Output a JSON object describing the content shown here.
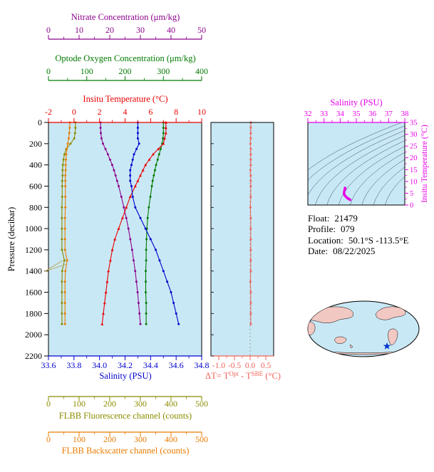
{
  "colors": {
    "plot_bg": "#c9e8f5",
    "nitrate": "#8b008b",
    "oxygen": "#007a00",
    "temperature": "#e80000",
    "pressure": "#000000",
    "salinity": "#0000cd",
    "fluorescence": "#8b8b00",
    "backscatter": "#e87c00",
    "delta_t": "#f0645a",
    "ts": "#e800e8",
    "contour": "#3a4a6b",
    "map_land": "#f2c8c3",
    "map_ocean": "#c9e8f5",
    "marker_star": "#0033cc"
  },
  "axes": {
    "nitrate": {
      "title": "Nitrate Concentration (μm/kg)",
      "min": 0,
      "max": 50,
      "ticks": [
        "0",
        "10",
        "20",
        "30",
        "40",
        "50"
      ]
    },
    "oxygen": {
      "title": "Optode Oxygen Concentration (μm/kg)",
      "min": 0,
      "max": 400,
      "ticks": [
        "0",
        "100",
        "200",
        "300",
        "400"
      ]
    },
    "temperature": {
      "title": "Insitu Temperature (°C)",
      "min": -2,
      "max": 10,
      "ticks": [
        "-2",
        "0",
        "2",
        "4",
        "6",
        "8",
        "10"
      ]
    },
    "pressure": {
      "title": "Pressure (decibar)",
      "min": 0,
      "max": 2200,
      "ticks": [
        "0",
        "200",
        "400",
        "600",
        "800",
        "1000",
        "1200",
        "1400",
        "1600",
        "1800",
        "2000",
        "2200"
      ]
    },
    "salinity": {
      "title": "Salinity (PSU)",
      "min": 33.6,
      "max": 34.8,
      "ticks": [
        "33.6",
        "33.8",
        "34.0",
        "34.2",
        "34.4",
        "34.6",
        "34.8"
      ]
    },
    "fluorescence": {
      "title": "FLBB Fluorescence channel (counts)",
      "min": 0,
      "max": 500,
      "ticks": [
        "0",
        "100",
        "200",
        "300",
        "400",
        "500"
      ]
    },
    "backscatter": {
      "title": "FLBB Backscatter channel (counts)",
      "min": 0,
      "max": 500,
      "ticks": [
        "0",
        "100",
        "200",
        "300",
        "400",
        "500"
      ]
    },
    "delta_t": {
      "title_parts": {
        "base1": "ΔT= T",
        "sup1": "Opt",
        "base2": " - T",
        "sup2": "SBE",
        "base3": " (°C)"
      },
      "min": -1.25,
      "max": 0.75,
      "ticks": [
        "-1.0",
        "-0.5",
        "0.0",
        "0.5"
      ]
    },
    "ts_salinity": {
      "title": "Salinity (PSU)",
      "min": 32,
      "max": 38,
      "ticks": [
        "32",
        "33",
        "34",
        "35",
        "36",
        "37",
        "38"
      ]
    },
    "ts_temperature": {
      "title": "Insitu Temperature (°C)",
      "min": 0,
      "max": 35,
      "ticks": [
        "0",
        "5",
        "10",
        "15",
        "20",
        "25",
        "30",
        "35"
      ]
    }
  },
  "float_info": {
    "float_label": "Float:",
    "float_value": "21479",
    "profile_label": "Profile:",
    "profile_value": "079",
    "location_label": "Location:",
    "location_value": "50.1°S -113.5°E",
    "date_label": "Date:",
    "date_value": "08/22/2025"
  },
  "chart_data": [
    {
      "id": "profile-plot",
      "type": "line",
      "ylabel": "Pressure (decibar)",
      "ylim": [
        0,
        2200
      ],
      "pressure_db": [
        0,
        50,
        100,
        150,
        200,
        250,
        300,
        350,
        400,
        450,
        500,
        550,
        600,
        700,
        800,
        900,
        1000,
        1100,
        1200,
        1300,
        1400,
        1500,
        1600,
        1700,
        1800,
        1900
      ],
      "series": [
        {
          "name": "Nitrate Concentration (μm/kg)",
          "axis": "nitrate",
          "marker": "dot",
          "values": [
            17.0,
            17.0,
            17.1,
            17.3,
            17.8,
            18.6,
            19.4,
            20.1,
            20.8,
            21.4,
            21.9,
            22.4,
            22.9,
            23.8,
            24.6,
            25.4,
            26.1,
            26.7,
            27.3,
            27.8,
            28.3,
            28.7,
            29.1,
            29.4,
            29.7,
            30.0
          ]
        },
        {
          "name": "Optode Oxygen Concentration (μm/kg)",
          "axis": "oxygen",
          "marker": "dot",
          "values": [
            300,
            300,
            300,
            299,
            297,
            293,
            289,
            285,
            281,
            278,
            275,
            272,
            270,
            266,
            262,
            259,
            257,
            256,
            255,
            255,
            254,
            254,
            254,
            255,
            255,
            255
          ]
        },
        {
          "name": "Insitu Temperature (°C)",
          "axis": "temperature",
          "marker": "triangle",
          "values": [
            7.2,
            7.2,
            7.2,
            7.1,
            7.0,
            6.6,
            6.2,
            5.9,
            5.6,
            5.4,
            5.2,
            5.0,
            4.8,
            4.4,
            4.1,
            3.8,
            3.5,
            3.2,
            3.0,
            2.85,
            2.7,
            2.6,
            2.5,
            2.4,
            2.3,
            2.2
          ]
        },
        {
          "name": "Salinity (PSU)",
          "axis": "salinity",
          "marker": "dot",
          "values": [
            34.3,
            34.3,
            34.3,
            34.3,
            34.31,
            34.29,
            34.27,
            34.26,
            34.25,
            34.24,
            34.24,
            34.24,
            34.25,
            34.26,
            34.28,
            34.32,
            34.36,
            34.4,
            34.44,
            34.47,
            34.5,
            34.53,
            34.56,
            34.58,
            34.6,
            34.62
          ]
        },
        {
          "name": "FLBB Fluorescence channel (counts)",
          "axis": "fluorescence",
          "marker": "dot",
          "values": [
            88,
            88,
            87,
            84,
            72,
            58,
            52,
            49,
            47,
            46,
            46,
            45,
            45,
            45,
            44,
            44,
            44,
            44,
            44,
            52,
            45,
            44,
            44,
            44,
            44,
            44
          ]
        },
        {
          "name": "FLBB Backscatter channel (counts)",
          "axis": "backscatter",
          "marker": "dot",
          "values": [
            70,
            69,
            68,
            66,
            63,
            60,
            58,
            57,
            56,
            56,
            55,
            55,
            55,
            55,
            55,
            54,
            54,
            54,
            54,
            61,
            55,
            54,
            54,
            54,
            54,
            54
          ]
        }
      ]
    },
    {
      "id": "delta-t-plot",
      "type": "line",
      "xlabel": "ΔT= TOpt - TSBE (°C)",
      "xlim": [
        -1.25,
        0.75
      ],
      "pressure_db": [
        0,
        50,
        100,
        150,
        200,
        250,
        300,
        350,
        400,
        450,
        500,
        550,
        600,
        700,
        800,
        900,
        1000,
        1100,
        1200,
        1300,
        1400,
        1500,
        1600,
        1700,
        1800,
        1900
      ],
      "values": [
        0.03,
        0.02,
        0.02,
        0.02,
        0.01,
        0.02,
        0.02,
        0.02,
        0.02,
        0.01,
        0.02,
        0.02,
        0.02,
        0.02,
        0.01,
        0.02,
        0.02,
        0.02,
        0.02,
        0.02,
        0.02,
        0.01,
        0.02,
        0.02,
        0.02,
        0.02
      ]
    },
    {
      "id": "ts-plot",
      "type": "scatter",
      "xlabel": "Salinity (PSU)",
      "ylabel": "Insitu Temperature (°C)",
      "xlim": [
        32,
        38
      ],
      "ylim": [
        0,
        35
      ],
      "salinity": [
        34.3,
        34.3,
        34.3,
        34.3,
        34.31,
        34.29,
        34.27,
        34.26,
        34.25,
        34.24,
        34.24,
        34.24,
        34.25,
        34.26,
        34.28,
        34.32,
        34.36,
        34.4,
        34.44,
        34.47,
        34.5,
        34.53,
        34.56,
        34.58,
        34.6,
        34.62
      ],
      "temperature": [
        7.2,
        7.2,
        7.2,
        7.1,
        7.0,
        6.6,
        6.2,
        5.9,
        5.6,
        5.4,
        5.2,
        5.0,
        4.8,
        4.4,
        4.1,
        3.8,
        3.5,
        3.2,
        3.0,
        2.85,
        2.7,
        2.6,
        2.5,
        2.4,
        2.3,
        2.2
      ]
    }
  ]
}
